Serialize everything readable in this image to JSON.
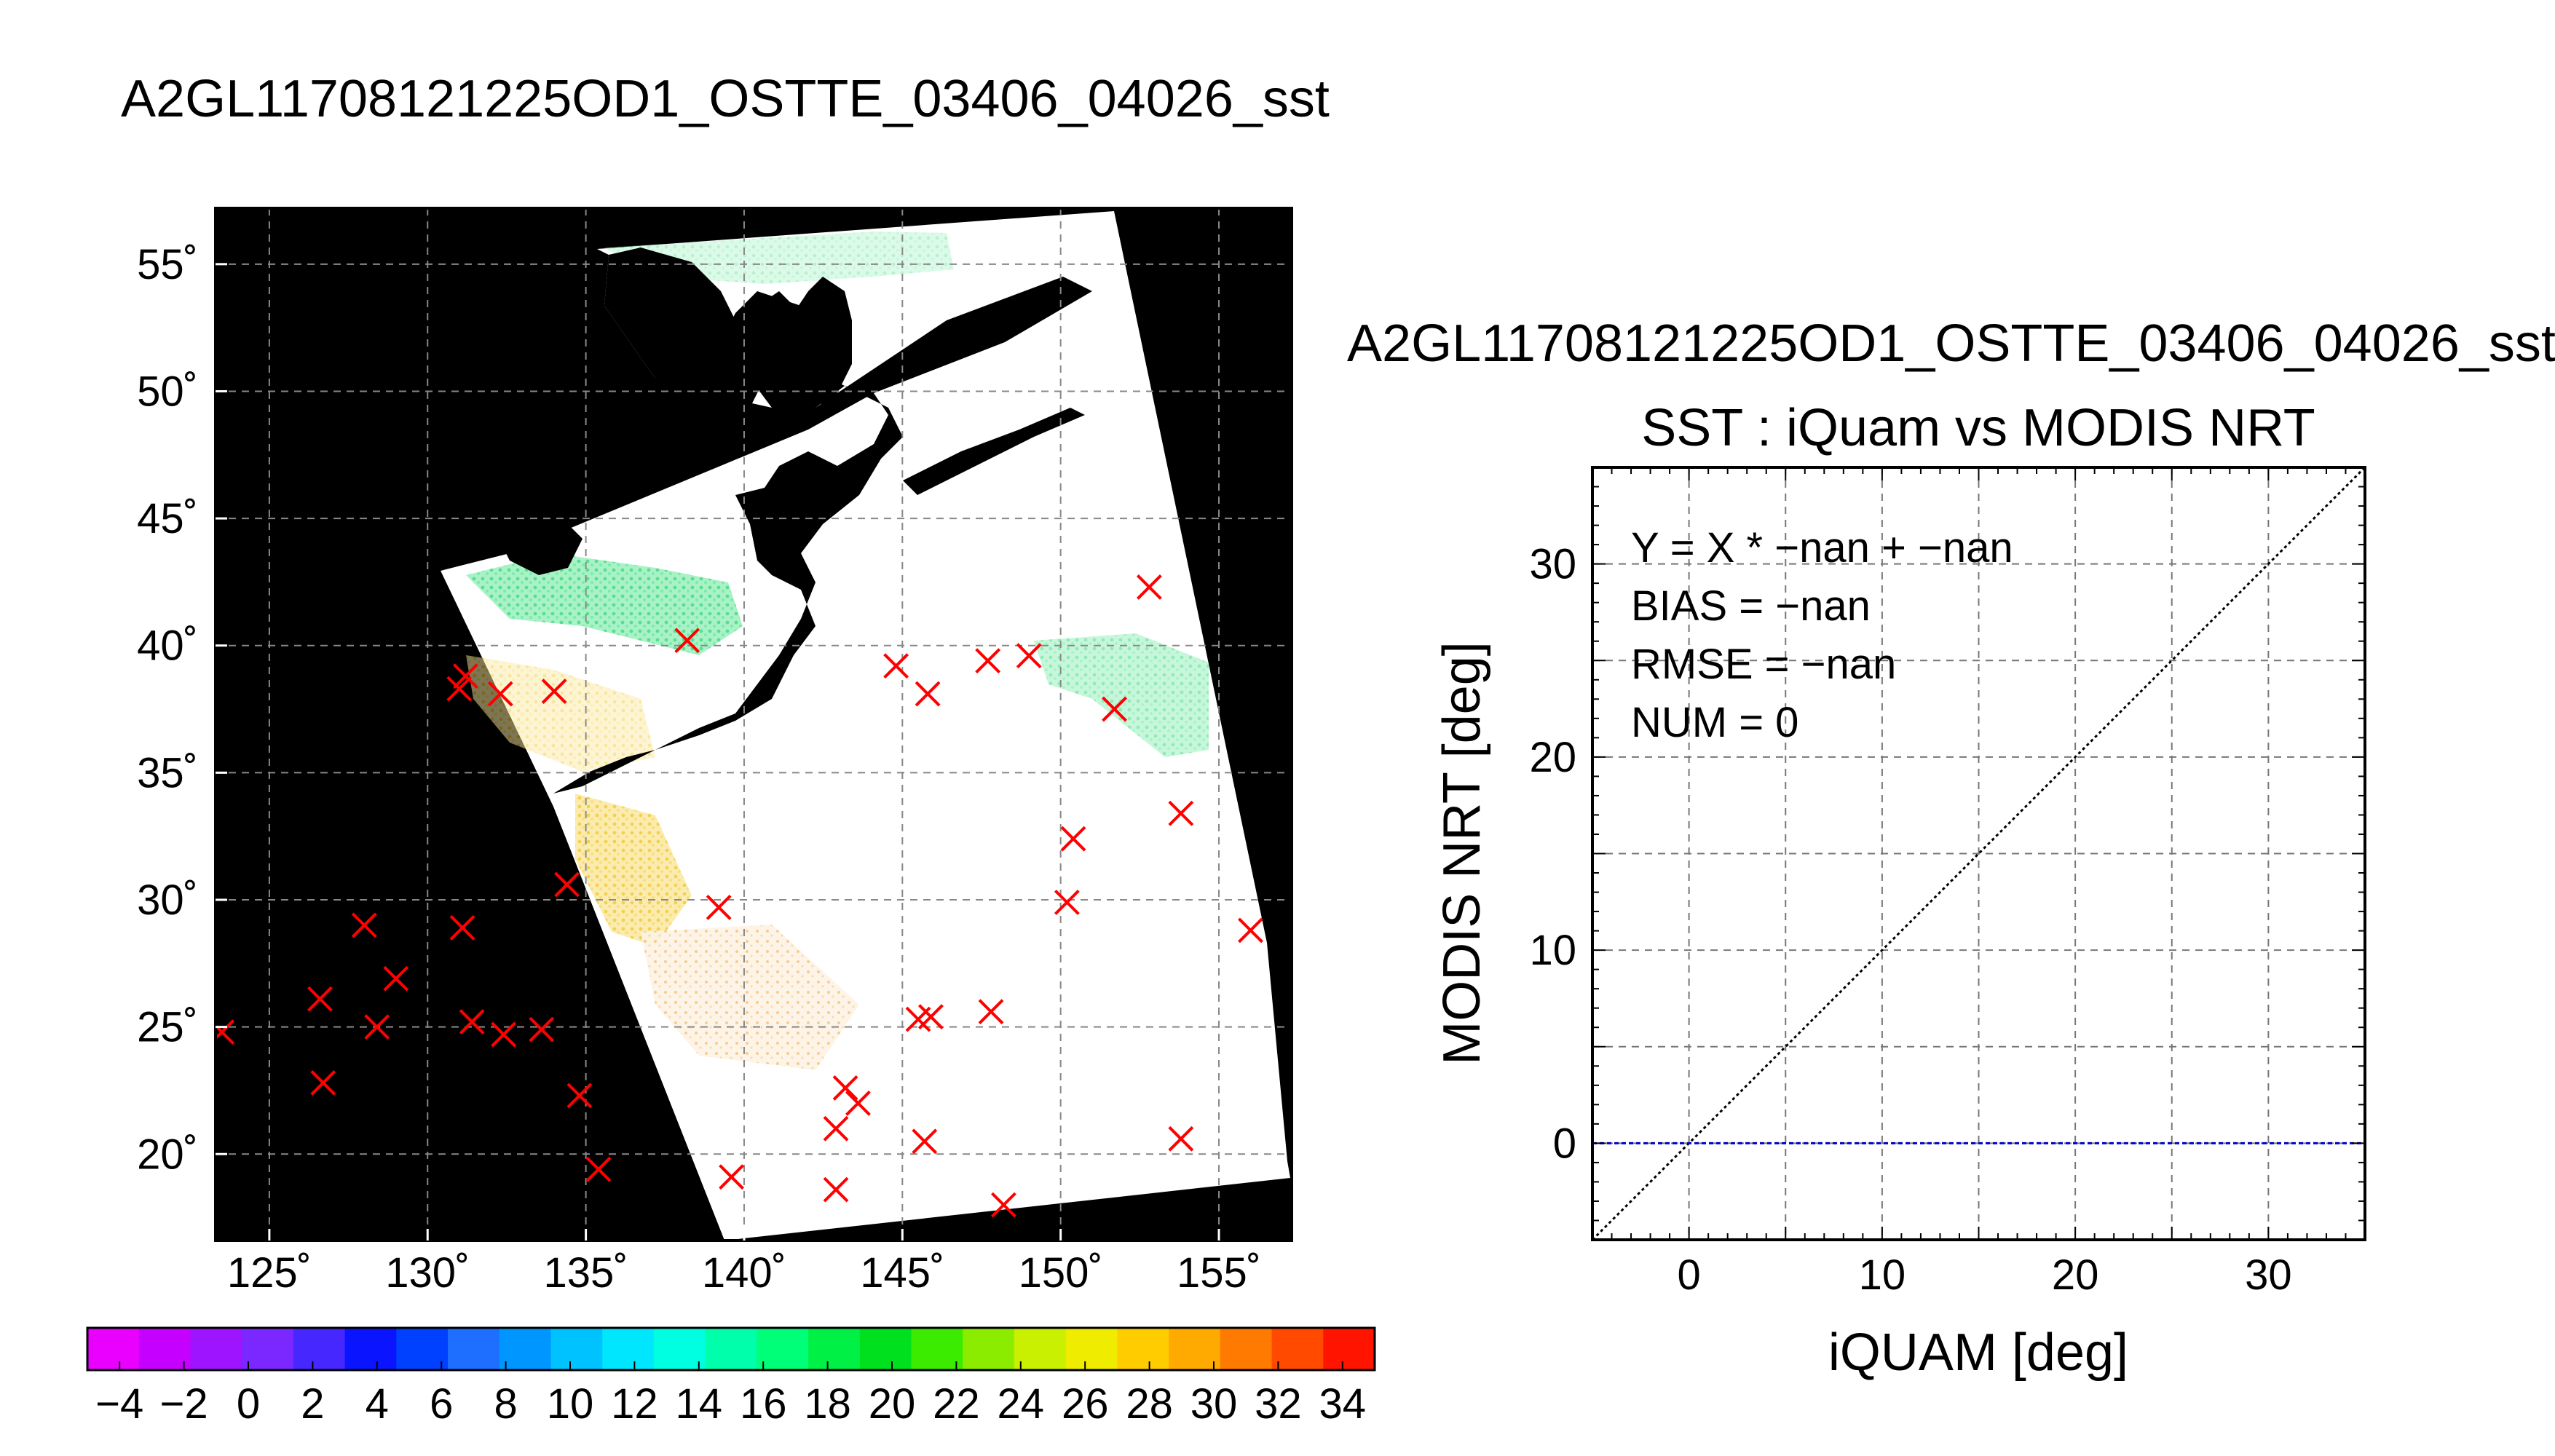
{
  "figure": {
    "main_title": "A2GL11708121225OD1_OSTTE_03406_04026_sst"
  },
  "chart_data": [
    {
      "type": "map",
      "title": "A2GL11708121225OD1_OSTTE_03406_04026_sst",
      "lon_ticks": [
        125,
        130,
        135,
        140,
        145,
        150,
        155
      ],
      "lat_ticks": [
        20,
        25,
        30,
        35,
        40,
        45,
        50,
        55
      ],
      "lon_tick_labels": [
        "125˚",
        "130˚",
        "135˚",
        "140˚",
        "145˚",
        "150˚",
        "155˚"
      ],
      "lat_tick_labels": [
        "20˚",
        "25˚",
        "30˚",
        "35˚",
        "40˚",
        "45˚",
        "50˚",
        "55˚"
      ],
      "xlim": [
        123.3,
        157.3
      ],
      "ylim": [
        16.6,
        57.2
      ],
      "grid": true,
      "background_color": "#000000",
      "swath_color": "#ffffff",
      "marker": "x",
      "marker_color": "#ff0000",
      "iquam_points": [
        {
          "lon": 138.2,
          "lat": 40.2
        },
        {
          "lon": 131.2,
          "lat": 38.8
        },
        {
          "lon": 131.0,
          "lat": 38.3
        },
        {
          "lon": 132.3,
          "lat": 38.1
        },
        {
          "lon": 134.0,
          "lat": 38.2
        },
        {
          "lon": 144.8,
          "lat": 39.2
        },
        {
          "lon": 145.8,
          "lat": 38.1
        },
        {
          "lon": 147.7,
          "lat": 39.4
        },
        {
          "lon": 149.0,
          "lat": 39.6
        },
        {
          "lon": 152.8,
          "lat": 42.3
        },
        {
          "lon": 151.7,
          "lat": 37.5
        },
        {
          "lon": 153.8,
          "lat": 33.4
        },
        {
          "lon": 150.4,
          "lat": 32.4
        },
        {
          "lon": 150.2,
          "lat": 29.9
        },
        {
          "lon": 156.0,
          "lat": 28.8
        },
        {
          "lon": 134.4,
          "lat": 30.6
        },
        {
          "lon": 139.2,
          "lat": 29.7
        },
        {
          "lon": 128.0,
          "lat": 29.0
        },
        {
          "lon": 131.1,
          "lat": 28.9
        },
        {
          "lon": 129.0,
          "lat": 26.9
        },
        {
          "lon": 126.6,
          "lat": 26.1
        },
        {
          "lon": 128.4,
          "lat": 25.0
        },
        {
          "lon": 131.4,
          "lat": 25.2
        },
        {
          "lon": 132.4,
          "lat": 24.7
        },
        {
          "lon": 133.6,
          "lat": 24.9
        },
        {
          "lon": 123.5,
          "lat": 24.8
        },
        {
          "lon": 126.7,
          "lat": 22.8
        },
        {
          "lon": 134.8,
          "lat": 22.3
        },
        {
          "lon": 135.4,
          "lat": 19.4
        },
        {
          "lon": 139.6,
          "lat": 19.1
        },
        {
          "lon": 143.2,
          "lat": 22.6
        },
        {
          "lon": 143.6,
          "lat": 22.0
        },
        {
          "lon": 142.9,
          "lat": 21.0
        },
        {
          "lon": 142.9,
          "lat": 18.6
        },
        {
          "lon": 145.5,
          "lat": 25.3
        },
        {
          "lon": 145.9,
          "lat": 25.4
        },
        {
          "lon": 147.8,
          "lat": 25.6
        },
        {
          "lon": 145.7,
          "lat": 20.5
        },
        {
          "lon": 148.2,
          "lat": 18.0
        },
        {
          "lon": 153.8,
          "lat": 20.6
        }
      ]
    },
    {
      "type": "colorbar",
      "range": [
        -5,
        35
      ],
      "tick_values": [
        -4,
        -2,
        0,
        2,
        4,
        6,
        8,
        10,
        12,
        14,
        16,
        18,
        20,
        22,
        24,
        26,
        28,
        30,
        32,
        34
      ],
      "tick_labels": [
        "−4",
        "−2",
        "0",
        "2",
        "4",
        "6",
        "8",
        "10",
        "12",
        "14",
        "16",
        "18",
        "20",
        "22",
        "24",
        "26",
        "28",
        "30",
        "32",
        "34"
      ],
      "colors": [
        "#ea00ff",
        "#c500ff",
        "#9e14ff",
        "#7a28ff",
        "#4628ff",
        "#0a14ff",
        "#0040ff",
        "#1e6eff",
        "#0096ff",
        "#00c2ff",
        "#00e6ff",
        "#00ffe0",
        "#00ffaa",
        "#00ff78",
        "#00f046",
        "#00e01e",
        "#3cec00",
        "#8cec00",
        "#c8f000",
        "#f0ec00",
        "#ffcc00",
        "#ffaa00",
        "#ff7a00",
        "#ff4a00",
        "#ff1400"
      ]
    },
    {
      "type": "scatter",
      "header": "A2GL11708121225OD1_OSTTE_03406_04026_sst",
      "title": "SST : iQuam vs MODIS NRT",
      "xlabel": "iQUAM [deg]",
      "ylabel": "MODIS NRT [deg]",
      "xlim": [
        -5,
        35
      ],
      "ylim": [
        -5,
        35
      ],
      "xticks": [
        0,
        10,
        20,
        30
      ],
      "yticks": [
        0,
        10,
        20,
        30
      ],
      "grid_step": 5,
      "grid": true,
      "points": [],
      "reference_line": {
        "from": [
          -5,
          -5
        ],
        "to": [
          35,
          35
        ],
        "style": "dotted",
        "color": "#000000"
      },
      "zero_line": {
        "y": 0,
        "style": "dashed",
        "color": "#0000cc"
      },
      "stats": {
        "equation": "Y = X * −nan + −nan",
        "bias": "BIAS = −nan",
        "rmse": "RMSE = −nan",
        "num": "NUM = 0"
      }
    }
  ]
}
